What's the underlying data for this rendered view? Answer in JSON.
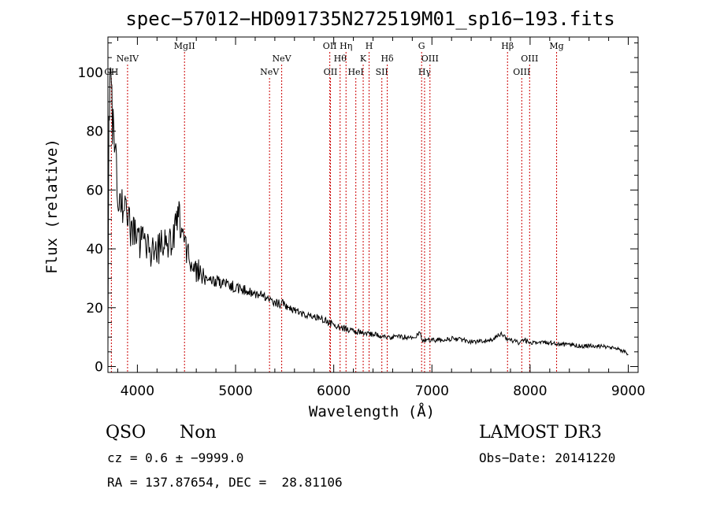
{
  "chart_data": {
    "type": "line",
    "title": "spec−57012−HD091735N272519M01_sp16−193.fits",
    "xlabel": "Wavelength (Å)",
    "ylabel": "Flux (relative)",
    "xlim": [
      3700,
      9100
    ],
    "ylim": [
      -2,
      112
    ],
    "xticks": [
      4000,
      5000,
      6000,
      7000,
      8000,
      9000
    ],
    "yticks": [
      0,
      20,
      40,
      60,
      80,
      100
    ],
    "grid": false,
    "series": [
      {
        "name": "spectrum",
        "x": [
          3700,
          3710,
          3720,
          3730,
          3740,
          3760,
          3780,
          3800,
          3820,
          3850,
          3880,
          3920,
          3960,
          4000,
          4050,
          4100,
          4150,
          4200,
          4250,
          4300,
          4350,
          4380,
          4400,
          4430,
          4450,
          4470,
          4500,
          4550,
          4600,
          4700,
          4800,
          4900,
          5000,
          5100,
          5200,
          5300,
          5400,
          5500,
          5600,
          5700,
          5800,
          5900,
          5950,
          6000,
          6100,
          6200,
          6300,
          6400,
          6500,
          6600,
          6700,
          6800,
          6880,
          6900,
          6950,
          7000,
          7100,
          7200,
          7300,
          7400,
          7500,
          7600,
          7650,
          7700,
          7750,
          7800,
          7900,
          7950,
          8000,
          8100,
          8200,
          8300,
          8400,
          8500,
          8600,
          8700,
          8800,
          8900,
          8960,
          9000
        ],
        "values": [
          5,
          95,
          99,
          90,
          85,
          80,
          70,
          62,
          58,
          56,
          52,
          48,
          45,
          43,
          42,
          40,
          39,
          40,
          41,
          42,
          44,
          47,
          49,
          50,
          47,
          42,
          38,
          35,
          33,
          31,
          29,
          28,
          27,
          26,
          25,
          24,
          22,
          21,
          19,
          18,
          17,
          16,
          15,
          14,
          13,
          12,
          11.5,
          11,
          10.5,
          10,
          10,
          10,
          11,
          9,
          9,
          9,
          9,
          9.5,
          9,
          8.5,
          8.5,
          9,
          10,
          11,
          10,
          9,
          8,
          9,
          8,
          8,
          8,
          7.5,
          7.5,
          7,
          7,
          7,
          6.5,
          6,
          5,
          4
        ]
      }
    ],
    "lines": [
      {
        "label": "CH",
        "x": 3735,
        "row": "low"
      },
      {
        "label": "NeIV",
        "x": 3900,
        "row": "mid"
      },
      {
        "label": "MgII",
        "x": 4480,
        "row": "top"
      },
      {
        "label": "NeV",
        "x": 5346,
        "row": "low"
      },
      {
        "label": "NeV",
        "x": 5470,
        "row": "mid"
      },
      {
        "label": "OII",
        "x": 5960,
        "row": "top"
      },
      {
        "label": "OII",
        "x": 5967,
        "row": "low"
      },
      {
        "label": "Hθ",
        "x": 6065,
        "row": "mid"
      },
      {
        "label": "Hη",
        "x": 6125,
        "row": "top"
      },
      {
        "label": "HeI",
        "x": 6225,
        "row": "low"
      },
      {
        "label": "K",
        "x": 6300,
        "row": "mid"
      },
      {
        "label": "H",
        "x": 6360,
        "row": "top"
      },
      {
        "label": "SII",
        "x": 6490,
        "row": "low"
      },
      {
        "label": "Hδ",
        "x": 6545,
        "row": "mid"
      },
      {
        "label": "G",
        "x": 6895,
        "row": "top"
      },
      {
        "label": "Hγ",
        "x": 6925,
        "row": "low"
      },
      {
        "label": "OIII",
        "x": 6980,
        "row": "mid"
      },
      {
        "label": "Hβ",
        "x": 7770,
        "row": "top"
      },
      {
        "label": "OIII",
        "x": 7915,
        "row": "low"
      },
      {
        "label": "OIII",
        "x": 7995,
        "row": "mid"
      },
      {
        "label": "Mg",
        "x": 8270,
        "row": "top"
      }
    ]
  },
  "info": {
    "class": "QSO",
    "subclass": "Non",
    "survey": "LAMOST DR3",
    "cz": "cz = 0.6 ± −9999.0",
    "obs_date": "Obs−Date: 20141220",
    "coords": "RA = 137.87654, DEC =  28.81106"
  },
  "colors": {
    "spectrum": "#000000",
    "line_marker": "#cc0000",
    "axes": "#000000"
  }
}
